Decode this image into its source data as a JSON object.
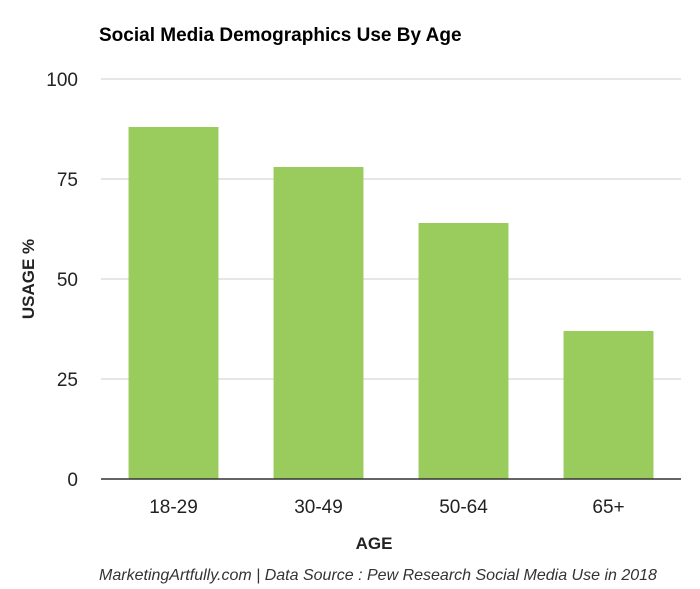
{
  "chart_data": {
    "type": "bar",
    "title": "Social Media Demographics Use By Age",
    "xlabel": "AGE",
    "ylabel": "USAGE %",
    "categories": [
      "18-29",
      "30-49",
      "50-64",
      "65+"
    ],
    "values": [
      88,
      78,
      64,
      37
    ],
    "ylim": [
      0,
      100
    ],
    "yticks": [
      0,
      25,
      50,
      75,
      100
    ],
    "grid": true,
    "legend": "none",
    "bar_color": "#99CC5C",
    "source": "MarketingArtfully.com | Data Source : Pew Research Social Media Use in 2018"
  }
}
